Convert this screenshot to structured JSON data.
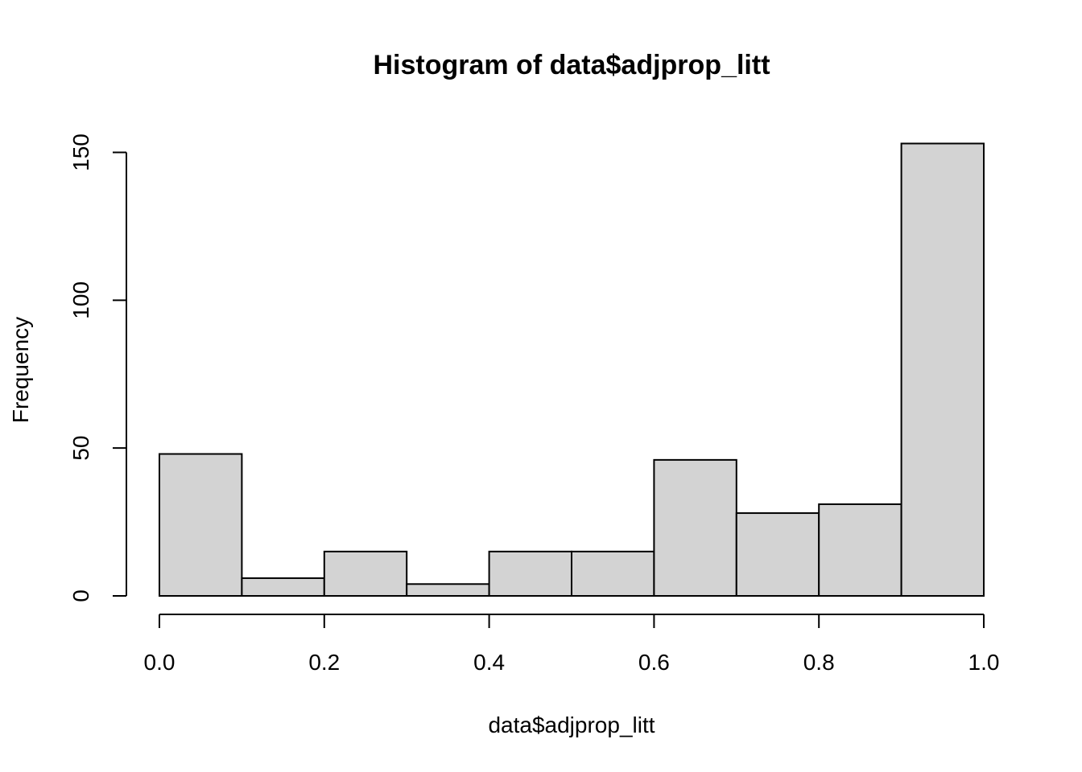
{
  "chart_data": {
    "type": "bar",
    "title": "Histogram of data$adjprop_litt",
    "xlabel": "data$adjprop_litt",
    "ylabel": "Frequency",
    "bins": [
      {
        "x0": 0.0,
        "x1": 0.1,
        "count": 48
      },
      {
        "x0": 0.1,
        "x1": 0.2,
        "count": 6
      },
      {
        "x0": 0.2,
        "x1": 0.3,
        "count": 15
      },
      {
        "x0": 0.3,
        "x1": 0.4,
        "count": 4
      },
      {
        "x0": 0.4,
        "x1": 0.5,
        "count": 15
      },
      {
        "x0": 0.5,
        "x1": 0.6,
        "count": 15
      },
      {
        "x0": 0.6,
        "x1": 0.7,
        "count": 46
      },
      {
        "x0": 0.7,
        "x1": 0.8,
        "count": 28
      },
      {
        "x0": 0.8,
        "x1": 0.9,
        "count": 31
      },
      {
        "x0": 0.9,
        "x1": 1.0,
        "count": 153
      }
    ],
    "xlim": [
      0.0,
      1.0
    ],
    "ylim": [
      0,
      150
    ],
    "x_ticks": [
      "0.0",
      "0.2",
      "0.4",
      "0.6",
      "0.8",
      "1.0"
    ],
    "y_ticks": [
      "0",
      "50",
      "100",
      "150"
    ],
    "bar_color": "#d3d3d3",
    "grid": false
  }
}
